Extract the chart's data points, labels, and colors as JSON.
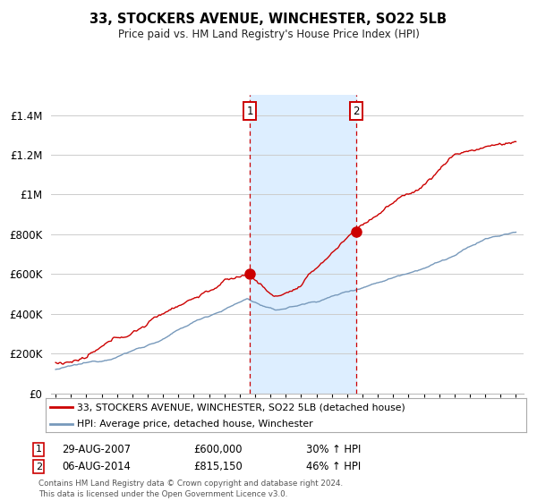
{
  "title": "33, STOCKERS AVENUE, WINCHESTER, SO22 5LB",
  "subtitle": "Price paid vs. HM Land Registry's House Price Index (HPI)",
  "ylim": [
    0,
    1500000
  ],
  "yticks": [
    0,
    200000,
    400000,
    600000,
    800000,
    1000000,
    1200000,
    1400000
  ],
  "ytick_labels": [
    "£0",
    "£200K",
    "£400K",
    "£600K",
    "£800K",
    "£1M",
    "£1.2M",
    "£1.4M"
  ],
  "line1_color": "#cc0000",
  "line2_color": "#7799bb",
  "shade_color": "#ddeeff",
  "marker1_x": 2007.65,
  "marker1_y": 600000,
  "marker2_x": 2014.59,
  "marker2_y": 815150,
  "vline1_x": 2007.65,
  "vline2_x": 2014.59,
  "legend1_label": "33, STOCKERS AVENUE, WINCHESTER, SO22 5LB (detached house)",
  "legend2_label": "HPI: Average price, detached house, Winchester",
  "table_row1": [
    "1",
    "29-AUG-2007",
    "£600,000",
    "30% ↑ HPI"
  ],
  "table_row2": [
    "2",
    "06-AUG-2014",
    "£815,150",
    "46% ↑ HPI"
  ],
  "footer": "Contains HM Land Registry data © Crown copyright and database right 2024.\nThis data is licensed under the Open Government Licence v3.0.",
  "bg_color": "#ffffff",
  "grid_color": "#cccccc",
  "xlim_left": 1994.7,
  "xlim_right": 2025.5
}
